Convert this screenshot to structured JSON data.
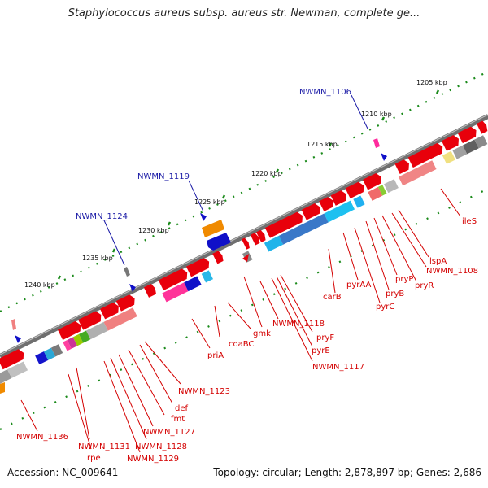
{
  "title": "Staphylococcus aureus subsp. aureus str. Newman, complete ge...",
  "accession": "Accession: NC_009641",
  "topology": "Topology: circular; Length: 2,878,897 bp; Genes: 2,686",
  "colors": {
    "gene_red": "#e8000b",
    "label_red": "#d40000",
    "label_blue": "#1a1aa6",
    "backbone": "#777777",
    "tick_green": "#1a8a1a"
  },
  "kbp_labels": [
    "1205 kbp",
    "1210 kbp",
    "1215 kbp",
    "1220 kbp",
    "1225 kbp",
    "1230 kbp",
    "1235 kbp",
    "1240 kbp"
  ],
  "blue_genes": [
    "NWMN_1106",
    "NWMN_1119",
    "NWMN_1124"
  ],
  "red_genes": [
    "ileS",
    "lspA",
    "NWMN_1108",
    "pryR",
    "pryP",
    "pryB",
    "pyrC",
    "pyrAA",
    "carB",
    "pryF",
    "pyrE",
    "NWMN_1117",
    "NWMN_1118",
    "gmk",
    "coaBC",
    "priA",
    "NWMN_1123",
    "def",
    "fmt",
    "NWMN_1127",
    "NWMN_1128",
    "NWMN_1129",
    "NWMN_1131",
    "rpe",
    "NWMN_1136"
  ]
}
